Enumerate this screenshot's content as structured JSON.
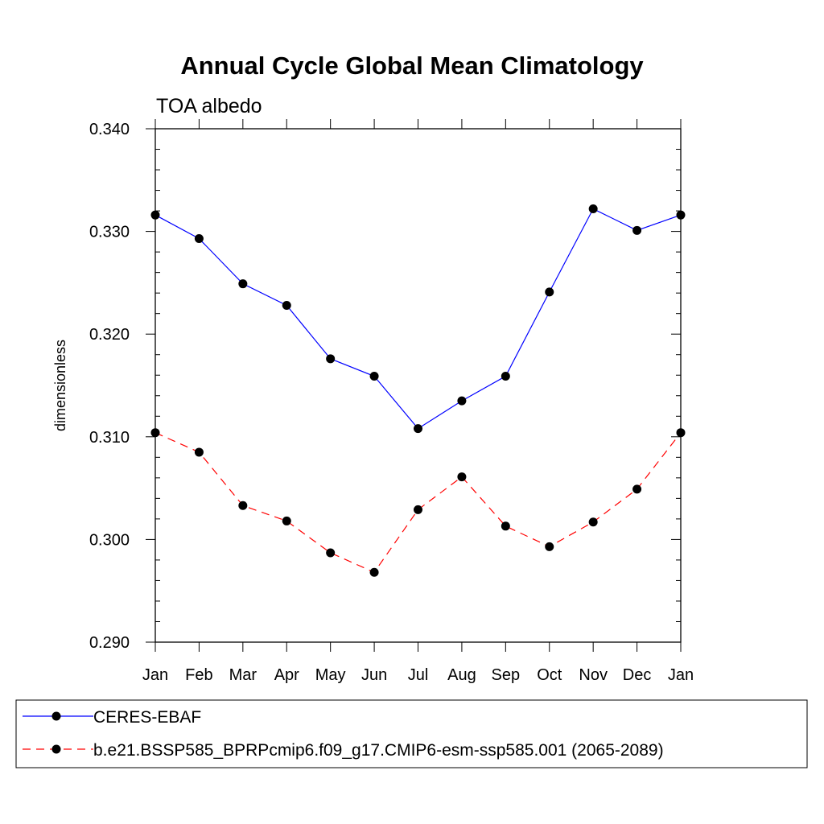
{
  "chart_data": {
    "type": "line",
    "title": "Annual Cycle Global Mean Climatology",
    "subtitle": "TOA albedo",
    "xlabel": "",
    "ylabel": "dimensionless",
    "categories": [
      "Jan",
      "Feb",
      "Mar",
      "Apr",
      "May",
      "Jun",
      "Jul",
      "Aug",
      "Sep",
      "Oct",
      "Nov",
      "Dec",
      "Jan"
    ],
    "ylim": [
      0.29,
      0.34
    ],
    "yticks": [
      0.29,
      0.3,
      0.31,
      0.32,
      0.33,
      0.34
    ],
    "ytick_labels": [
      "0.290",
      "0.300",
      "0.310",
      "0.320",
      "0.330",
      "0.340"
    ],
    "y_minor_step": 0.002,
    "grid": false,
    "legend_position": "bottom",
    "series": [
      {
        "name": "CERES-EBAF",
        "color": "#0000ff",
        "dash": "solid",
        "marker": "circle",
        "values": [
          0.3316,
          0.3293,
          0.3249,
          0.3228,
          0.3176,
          0.3159,
          0.3108,
          0.3135,
          0.3159,
          0.3241,
          0.3322,
          0.3301,
          0.3316
        ]
      },
      {
        "name": "b.e21.BSSP585_BPRPcmip6.f09_g17.CMIP6-esm-ssp585.001 (2065-2089)",
        "color": "#ff0000",
        "dash": "dashed",
        "marker": "circle",
        "values": [
          0.3104,
          0.3085,
          0.3033,
          0.3018,
          0.2987,
          0.2968,
          0.3029,
          0.3061,
          0.3013,
          0.2993,
          0.3017,
          0.3049,
          0.3104
        ]
      }
    ]
  }
}
